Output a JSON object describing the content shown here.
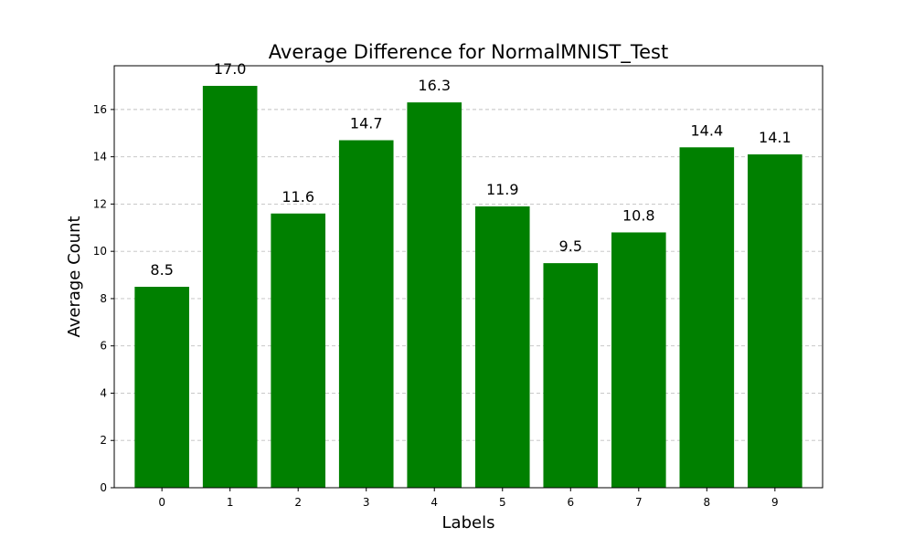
{
  "chart_data": {
    "type": "bar",
    "title": "Average Difference for NormalMNIST_Test",
    "xlabel": "Labels",
    "ylabel": "Average Count",
    "categories": [
      "0",
      "1",
      "2",
      "3",
      "4",
      "5",
      "6",
      "7",
      "8",
      "9"
    ],
    "values": [
      8.5,
      17.0,
      11.6,
      14.7,
      16.3,
      11.9,
      9.5,
      10.8,
      14.4,
      14.1
    ],
    "data_labels": [
      "8.5",
      "17.0",
      "11.6",
      "14.7",
      "16.3",
      "11.9",
      "9.5",
      "10.8",
      "14.4",
      "14.1"
    ],
    "ylim": [
      0,
      17.85
    ],
    "yticks": [
      0,
      2,
      4,
      6,
      8,
      10,
      12,
      14,
      16
    ],
    "grid": "y-dashed",
    "bar_color": "#008000",
    "grid_color": "#c0c0c0"
  }
}
